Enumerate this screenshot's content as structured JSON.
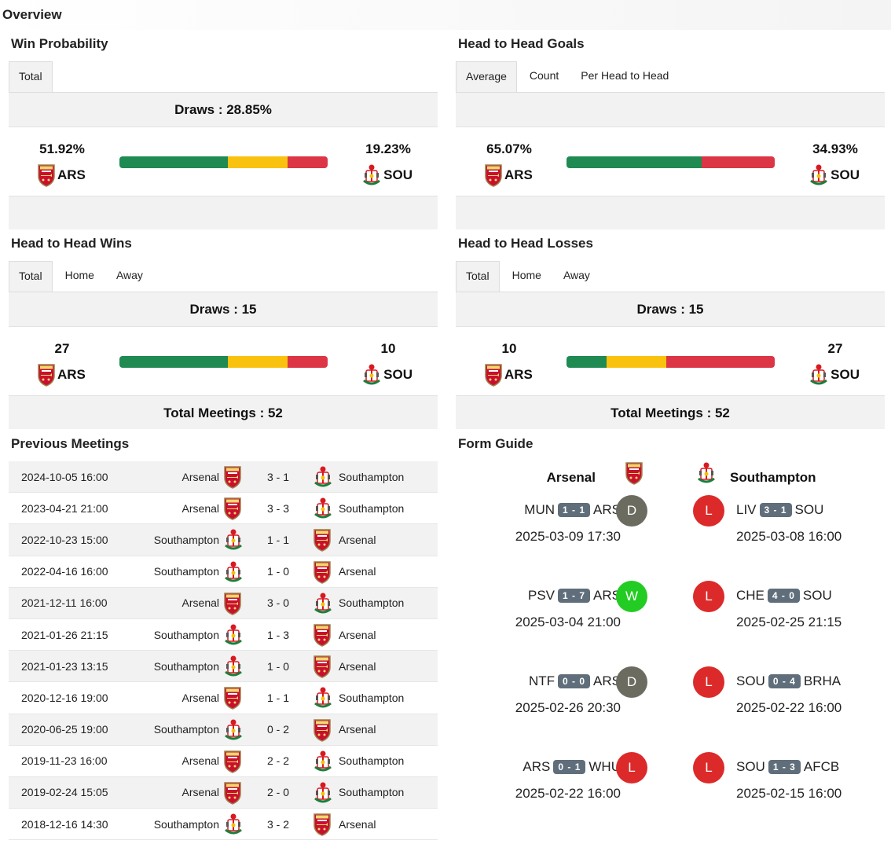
{
  "overview_title": "Overview",
  "teams": {
    "home_abbr": "ARS",
    "away_abbr": "SOU",
    "home_name": "Arsenal",
    "away_name": "Southampton"
  },
  "colors": {
    "green": "#1f8a52",
    "yellow": "#f9c20f",
    "red": "#dc3545"
  },
  "win_probability": {
    "title": "Win Probability",
    "tabs": [
      "Total"
    ],
    "draws_label": "Draws : 28.85%",
    "home_value": "51.92%",
    "away_value": "19.23%",
    "home_pct": 51.92,
    "draw_pct": 28.85,
    "away_pct": 19.23
  },
  "h2h_goals": {
    "title": "Head to Head Goals",
    "tabs": [
      "Average",
      "Count",
      "Per Head to Head"
    ],
    "home_value": "65.07%",
    "away_value": "34.93%",
    "home_pct": 65.07,
    "draw_pct": 0,
    "away_pct": 34.93
  },
  "h2h_wins": {
    "title": "Head to Head Wins",
    "tabs": [
      "Total",
      "Home",
      "Away"
    ],
    "draws_label": "Draws : 15",
    "home_value": "27",
    "away_value": "10",
    "home_pct": 51.92,
    "draw_pct": 28.85,
    "away_pct": 19.23,
    "total_label": "Total Meetings : 52"
  },
  "h2h_losses": {
    "title": "Head to Head Losses",
    "tabs": [
      "Total",
      "Home",
      "Away"
    ],
    "draws_label": "Draws : 15",
    "home_value": "10",
    "away_value": "27",
    "home_pct": 19.23,
    "draw_pct": 28.85,
    "away_pct": 51.92,
    "total_label": "Total Meetings : 52"
  },
  "previous_meetings": {
    "title": "Previous Meetings",
    "rows": [
      {
        "date": "2024-10-05 16:00",
        "home": "Arsenal",
        "score": "3 - 1",
        "away": "Southampton",
        "home_badge": "ars",
        "away_badge": "sou"
      },
      {
        "date": "2023-04-21 21:00",
        "home": "Arsenal",
        "score": "3 - 3",
        "away": "Southampton",
        "home_badge": "ars",
        "away_badge": "sou"
      },
      {
        "date": "2022-10-23 15:00",
        "home": "Southampton",
        "score": "1 - 1",
        "away": "Arsenal",
        "home_badge": "sou",
        "away_badge": "ars"
      },
      {
        "date": "2022-04-16 16:00",
        "home": "Southampton",
        "score": "1 - 0",
        "away": "Arsenal",
        "home_badge": "sou",
        "away_badge": "ars"
      },
      {
        "date": "2021-12-11 16:00",
        "home": "Arsenal",
        "score": "3 - 0",
        "away": "Southampton",
        "home_badge": "ars",
        "away_badge": "sou"
      },
      {
        "date": "2021-01-26 21:15",
        "home": "Southampton",
        "score": "1 - 3",
        "away": "Arsenal",
        "home_badge": "sou",
        "away_badge": "ars"
      },
      {
        "date": "2021-01-23 13:15",
        "home": "Southampton",
        "score": "1 - 0",
        "away": "Arsenal",
        "home_badge": "sou",
        "away_badge": "ars"
      },
      {
        "date": "2020-12-16 19:00",
        "home": "Arsenal",
        "score": "1 - 1",
        "away": "Southampton",
        "home_badge": "ars",
        "away_badge": "sou"
      },
      {
        "date": "2020-06-25 19:00",
        "home": "Southampton",
        "score": "0 - 2",
        "away": "Arsenal",
        "home_badge": "sou",
        "away_badge": "ars"
      },
      {
        "date": "2019-11-23 16:00",
        "home": "Arsenal",
        "score": "2 - 2",
        "away": "Southampton",
        "home_badge": "ars",
        "away_badge": "sou"
      },
      {
        "date": "2019-02-24 15:05",
        "home": "Arsenal",
        "score": "2 - 0",
        "away": "Southampton",
        "home_badge": "ars",
        "away_badge": "sou"
      },
      {
        "date": "2018-12-16 14:30",
        "home": "Southampton",
        "score": "3 - 2",
        "away": "Arsenal",
        "home_badge": "sou",
        "away_badge": "ars"
      }
    ]
  },
  "form_guide": {
    "title": "Form Guide",
    "home_team": "Arsenal",
    "away_team": "Southampton",
    "home_matches": [
      {
        "home": "MUN",
        "score": "1 - 1",
        "away": "ARS",
        "date": "2025-03-09 17:30",
        "result": "D"
      },
      {
        "home": "PSV",
        "score": "1 - 7",
        "away": "ARS",
        "date": "2025-03-04 21:00",
        "result": "W"
      },
      {
        "home": "NTF",
        "score": "0 - 0",
        "away": "ARS",
        "date": "2025-02-26 20:30",
        "result": "D"
      },
      {
        "home": "ARS",
        "score": "0 - 1",
        "away": "WHU",
        "date": "2025-02-22 16:00",
        "result": "L"
      }
    ],
    "away_matches": [
      {
        "home": "LIV",
        "score": "3 - 1",
        "away": "SOU",
        "date": "2025-03-08 16:00",
        "result": "L"
      },
      {
        "home": "CHE",
        "score": "4 - 0",
        "away": "SOU",
        "date": "2025-02-25 21:15",
        "result": "L"
      },
      {
        "home": "SOU",
        "score": "0 - 4",
        "away": "BRHA",
        "date": "2025-02-22 16:00",
        "result": "L"
      },
      {
        "home": "SOU",
        "score": "1 - 3",
        "away": "AFCB",
        "date": "2025-02-15 16:00",
        "result": "L"
      }
    ]
  }
}
